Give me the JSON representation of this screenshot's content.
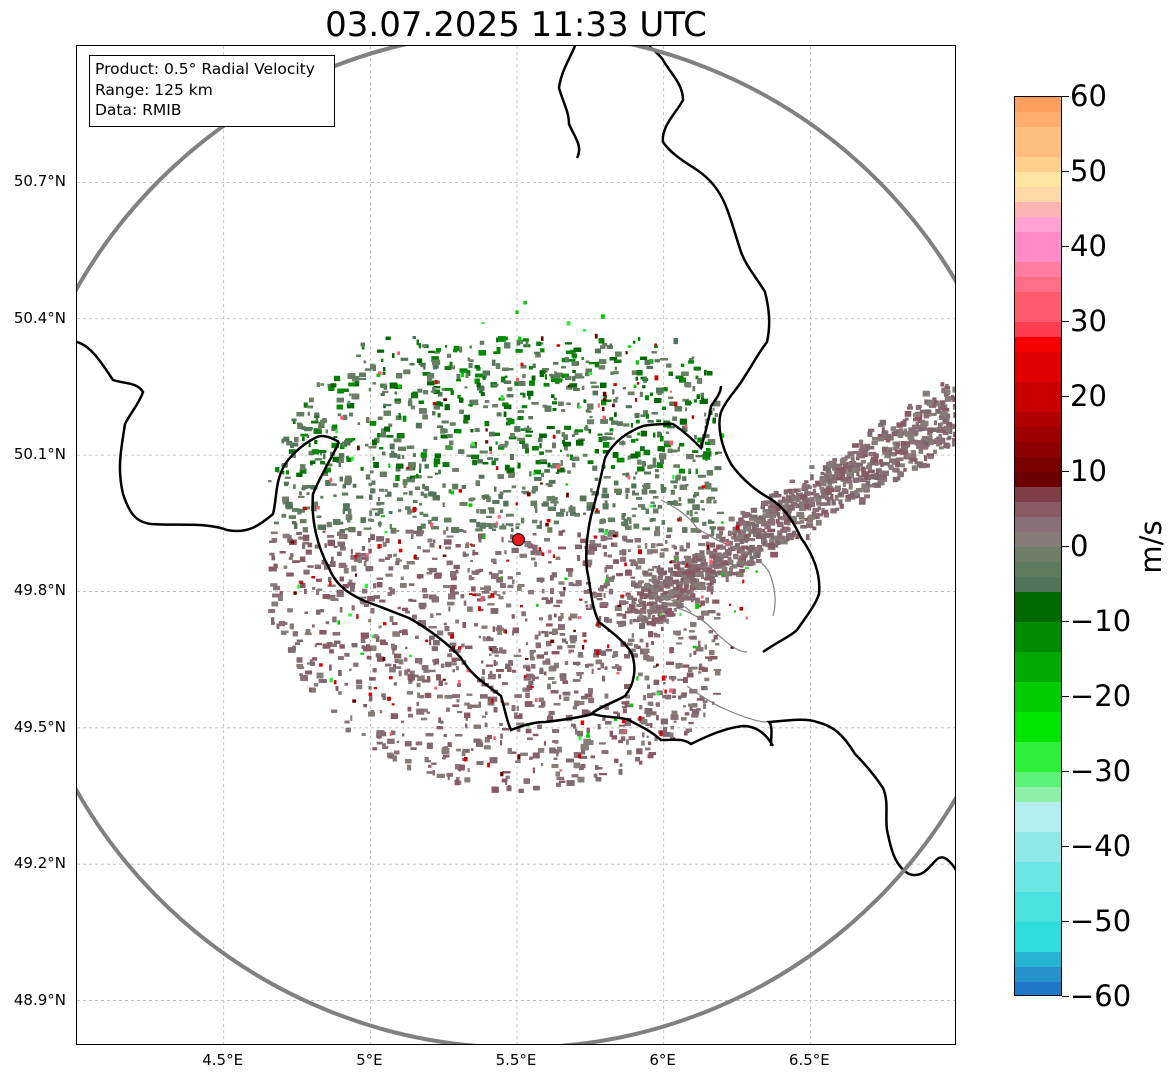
{
  "title": "03.07.2025 11:33 UTC",
  "info_box": {
    "lines": [
      "Product: 0.5° Radial Velocity",
      "Range: 125 km",
      "Data: RMIB"
    ]
  },
  "map": {
    "lon_range": [
      4.0,
      7.0
    ],
    "lat_range": [
      48.8,
      51.0
    ],
    "lat_ticks": [
      {
        "value": 48.9,
        "label": "48.9°N"
      },
      {
        "value": 49.2,
        "label": "49.2°N"
      },
      {
        "value": 49.5,
        "label": "49.5°N"
      },
      {
        "value": 49.8,
        "label": "49.8°N"
      },
      {
        "value": 50.1,
        "label": "50.1°N"
      },
      {
        "value": 50.4,
        "label": "50.4°N"
      },
      {
        "value": 50.7,
        "label": "50.7°N"
      }
    ],
    "lon_ticks": [
      {
        "value": 4.5,
        "label": "4.5°E"
      },
      {
        "value": 5.0,
        "label": "5°E"
      },
      {
        "value": 5.5,
        "label": "5.5°E"
      },
      {
        "value": 6.0,
        "label": "6°E"
      },
      {
        "value": 6.5,
        "label": "6.5°E"
      }
    ],
    "radar_site": {
      "lon": 5.505,
      "lat": 49.914,
      "marker_color": "#e8191b"
    },
    "range_ring_color": "#808080",
    "gridlines": true
  },
  "colorbar": {
    "unit": "m/s",
    "vmin": -60,
    "vmax": 60,
    "ticks": [
      {
        "value": 60,
        "label": "60"
      },
      {
        "value": 50,
        "label": "50"
      },
      {
        "value": 40,
        "label": "40"
      },
      {
        "value": 30,
        "label": "30"
      },
      {
        "value": 20,
        "label": "20"
      },
      {
        "value": 10,
        "label": "10"
      },
      {
        "value": 0,
        "label": "0"
      },
      {
        "value": -10,
        "label": "−10"
      },
      {
        "value": -20,
        "label": "−20"
      },
      {
        "value": -30,
        "label": "−30"
      },
      {
        "value": -40,
        "label": "−40"
      },
      {
        "value": -50,
        "label": "−50"
      },
      {
        "value": -60,
        "label": "−60"
      }
    ],
    "segments": [
      {
        "from": -60,
        "to": -58,
        "color": "#1f78c8"
      },
      {
        "from": -58,
        "to": -56,
        "color": "#2592cc"
      },
      {
        "from": -56,
        "to": -54,
        "color": "#27b4d4"
      },
      {
        "from": -54,
        "to": -50,
        "color": "#2edcdc"
      },
      {
        "from": -50,
        "to": -46,
        "color": "#4ae2e0"
      },
      {
        "from": -46,
        "to": -42,
        "color": "#6ae6e4"
      },
      {
        "from": -42,
        "to": -38,
        "color": "#8ee9e8"
      },
      {
        "from": -38,
        "to": -34,
        "color": "#b2eeee"
      },
      {
        "from": -34,
        "to": -32,
        "color": "#8ef0a8"
      },
      {
        "from": -32,
        "to": -30,
        "color": "#5cf27a"
      },
      {
        "from": -30,
        "to": -26,
        "color": "#2df03a"
      },
      {
        "from": -26,
        "to": -22,
        "color": "#00e600"
      },
      {
        "from": -22,
        "to": -18,
        "color": "#00cc00"
      },
      {
        "from": -18,
        "to": -14,
        "color": "#00aa00"
      },
      {
        "from": -14,
        "to": -10,
        "color": "#008c00"
      },
      {
        "from": -10,
        "to": -6,
        "color": "#006a00"
      },
      {
        "from": -6,
        "to": -4,
        "color": "#52745a"
      },
      {
        "from": -4,
        "to": -2,
        "color": "#5e7b60"
      },
      {
        "from": -2,
        "to": 0,
        "color": "#6e7d68"
      },
      {
        "from": 0,
        "to": 2,
        "color": "#867c78"
      },
      {
        "from": 2,
        "to": 4,
        "color": "#8a6e78"
      },
      {
        "from": 4,
        "to": 6,
        "color": "#8a5a64"
      },
      {
        "from": 6,
        "to": 8,
        "color": "#7e3e46"
      },
      {
        "from": 8,
        "to": 10,
        "color": "#6a0000"
      },
      {
        "from": 10,
        "to": 12,
        "color": "#7a0000"
      },
      {
        "from": 12,
        "to": 14,
        "color": "#8c0000"
      },
      {
        "from": 14,
        "to": 16,
        "color": "#9e0000"
      },
      {
        "from": 16,
        "to": 18,
        "color": "#b00000"
      },
      {
        "from": 18,
        "to": 22,
        "color": "#c80000"
      },
      {
        "from": 22,
        "to": 26,
        "color": "#e00000"
      },
      {
        "from": 26,
        "to": 28,
        "color": "#f60000"
      },
      {
        "from": 28,
        "to": 30,
        "color": "#ff3c50"
      },
      {
        "from": 30,
        "to": 34,
        "color": "#ff5a6e"
      },
      {
        "from": 34,
        "to": 36,
        "color": "#ff6e88"
      },
      {
        "from": 36,
        "to": 38,
        "color": "#ff7ea0"
      },
      {
        "from": 38,
        "to": 42,
        "color": "#ff8cc8"
      },
      {
        "from": 42,
        "to": 44,
        "color": "#ffa2d2"
      },
      {
        "from": 44,
        "to": 46,
        "color": "#ffb4b4"
      },
      {
        "from": 46,
        "to": 48,
        "color": "#ffd8a8"
      },
      {
        "from": 48,
        "to": 50,
        "color": "#ffe6a0"
      },
      {
        "from": 50,
        "to": 52,
        "color": "#ffd08c"
      },
      {
        "from": 52,
        "to": 56,
        "color": "#ffbe7e"
      },
      {
        "from": 56,
        "to": 58,
        "color": "#ffae6e"
      },
      {
        "from": 58,
        "to": 60,
        "color": "#ff9e5e"
      }
    ]
  }
}
